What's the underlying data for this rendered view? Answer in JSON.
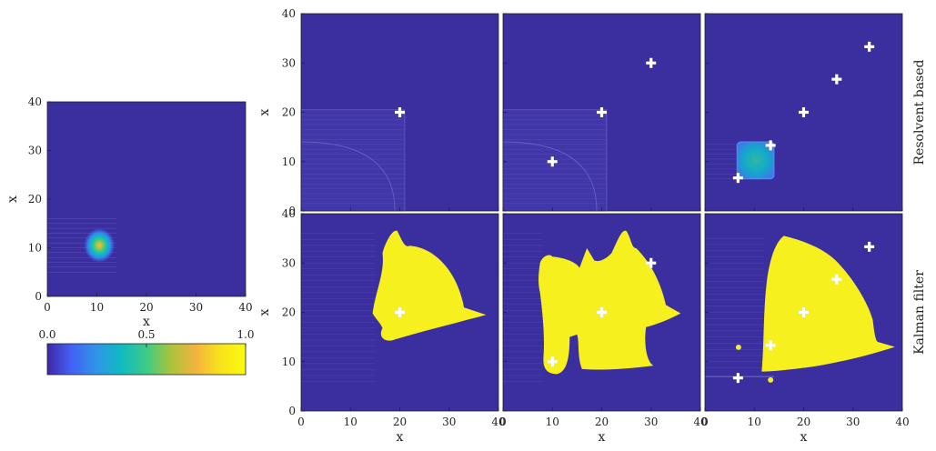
{
  "chart_data": {
    "type": "heatmap",
    "colors": {
      "background": "#3b2e9e",
      "yellow": "#f5f01e",
      "marker": "#ffffff",
      "colormap": [
        "#3e26a8",
        "#4361f5",
        "#2f96e8",
        "#10b9c2",
        "#3ccb87",
        "#a8c43c",
        "#f3b33e",
        "#f9e21a",
        "#f9fb0e"
      ]
    },
    "reference": {
      "xlabel": "x",
      "ylabel": "x",
      "xlim": [
        0,
        40
      ],
      "ylim": [
        0,
        40
      ],
      "xticks": [
        "0",
        "10",
        "20",
        "30",
        "40"
      ],
      "yticks": [
        "0",
        "10",
        "20",
        "30",
        "40"
      ],
      "peak": [
        10.5,
        10.5
      ]
    },
    "colorbar": {
      "ticks": [
        "0.0",
        "0.5",
        "1.0"
      ],
      "range": [
        0,
        1
      ]
    },
    "grid": {
      "xlabel": "x",
      "ylabel": "x",
      "xlim": [
        0,
        40
      ],
      "ylim": [
        0,
        40
      ],
      "xticks": [
        "0",
        "10",
        "20",
        "30",
        "40"
      ],
      "yticks": [
        "0",
        "10",
        "20",
        "30",
        "40"
      ],
      "rows": [
        {
          "label": "Resolvent based",
          "panels": [
            {
              "markers": [
                [
                  20,
                  20
                ]
              ]
            },
            {
              "markers": [
                [
                  10,
                  10
                ],
                [
                  20,
                  20
                ],
                [
                  30,
                  30
                ]
              ]
            },
            {
              "markers": [
                [
                  6.7,
                  6.7
                ],
                [
                  13.3,
                  13.3
                ],
                [
                  20,
                  20
                ],
                [
                  26.7,
                  26.7
                ],
                [
                  33.3,
                  33.3
                ]
              ]
            }
          ]
        },
        {
          "label": "Kalman filter",
          "panels": [
            {
              "markers": [
                [
                  20,
                  20
                ]
              ]
            },
            {
              "markers": [
                [
                  10,
                  10
                ],
                [
                  20,
                  20
                ],
                [
                  30,
                  30
                ]
              ]
            },
            {
              "markers": [
                [
                  6.7,
                  6.7
                ],
                [
                  13.3,
                  13.3
                ],
                [
                  20,
                  20
                ],
                [
                  26.7,
                  26.7
                ],
                [
                  33.3,
                  33.3
                ]
              ]
            }
          ]
        }
      ]
    }
  }
}
